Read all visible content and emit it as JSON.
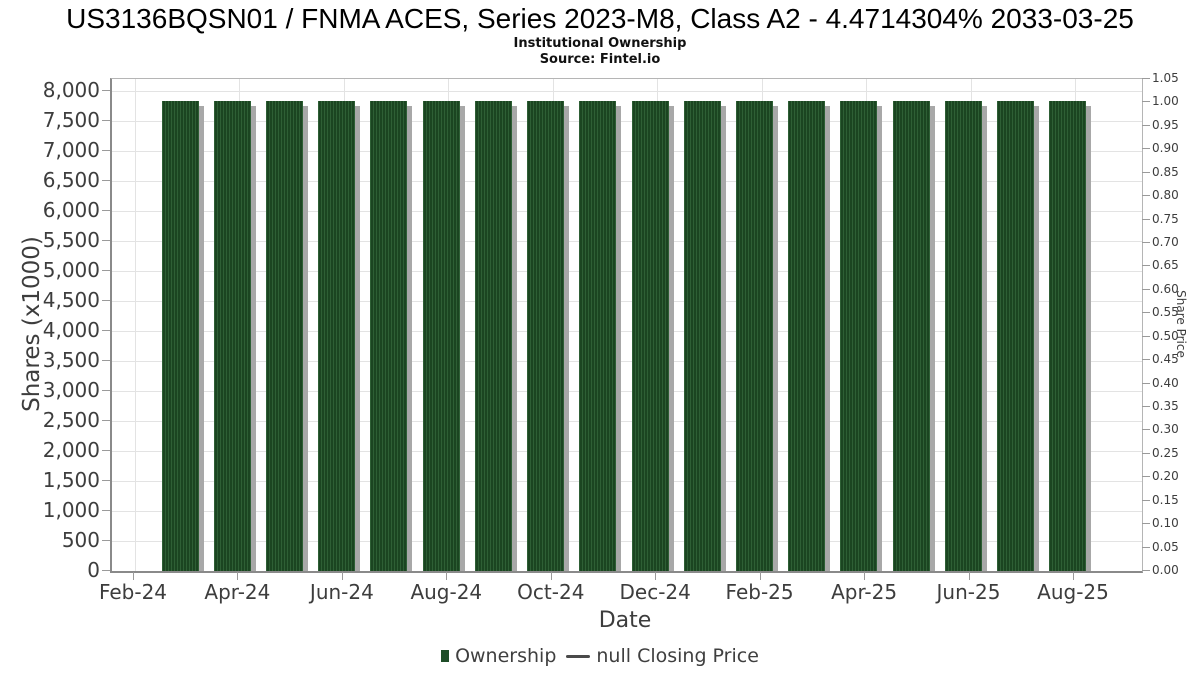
{
  "header": {
    "title": "US3136BQSN01 / FNMA ACES, Series 2023-M8, Class A2 - 4.4714304% 2033-03-25",
    "subtitle": "Institutional Ownership",
    "source": "Source: Fintel.io"
  },
  "legend": {
    "ownership_label": "Ownership",
    "price_label": "null Closing Price"
  },
  "colors": {
    "bar_fill": "#1b4521",
    "bar_hatch": "#2e5f35",
    "bar_shadow": "#a8a8a8",
    "gridline": "#e3e3e3",
    "axis_spine": "#8a8a8a",
    "tick_text": "#3d3d3d"
  },
  "chart_data": {
    "type": "bar",
    "title": "US3136BQSN01 / FNMA ACES, Series 2023-M8, Class A2 - 4.4714304% 2033-03-25",
    "subtitle": "Institutional Ownership",
    "source": "Source: Fintel.io",
    "xlabel": "Date",
    "ylabel_left": "Shares (x1000)",
    "ylabel_right": "Share Price",
    "categories": [
      "Mar-24",
      "Apr-24",
      "May-24",
      "Jun-24",
      "Jul-24",
      "Aug-24",
      "Sep-24",
      "Oct-24",
      "Nov-24",
      "Dec-24",
      "Jan-25",
      "Feb-25",
      "Mar-25",
      "Apr-25",
      "May-25",
      "Jun-25",
      "Jul-25",
      "Aug-25"
    ],
    "series": [
      {
        "name": "Ownership",
        "type": "bar",
        "values": [
          7830,
          7830,
          7830,
          7830,
          7830,
          7830,
          7830,
          7830,
          7830,
          7830,
          7830,
          7830,
          7830,
          7830,
          7830,
          7830,
          7830,
          7830
        ]
      },
      {
        "name": "null Closing Price",
        "type": "line",
        "values": []
      }
    ],
    "x_tick_labels": [
      "Feb-24",
      "Apr-24",
      "Jun-24",
      "Aug-24",
      "Oct-24",
      "Dec-24",
      "Feb-25",
      "Apr-25",
      "Jun-25",
      "Aug-25"
    ],
    "y_left": {
      "min": 0,
      "axis_max": 8200,
      "tick_step": 500,
      "tick_max": 8000
    },
    "y_right": {
      "min": 0,
      "axis_max": 1.05,
      "tick_step": 0.05,
      "tick_max": 1.05
    },
    "grid": true,
    "legend_position": "bottom"
  }
}
